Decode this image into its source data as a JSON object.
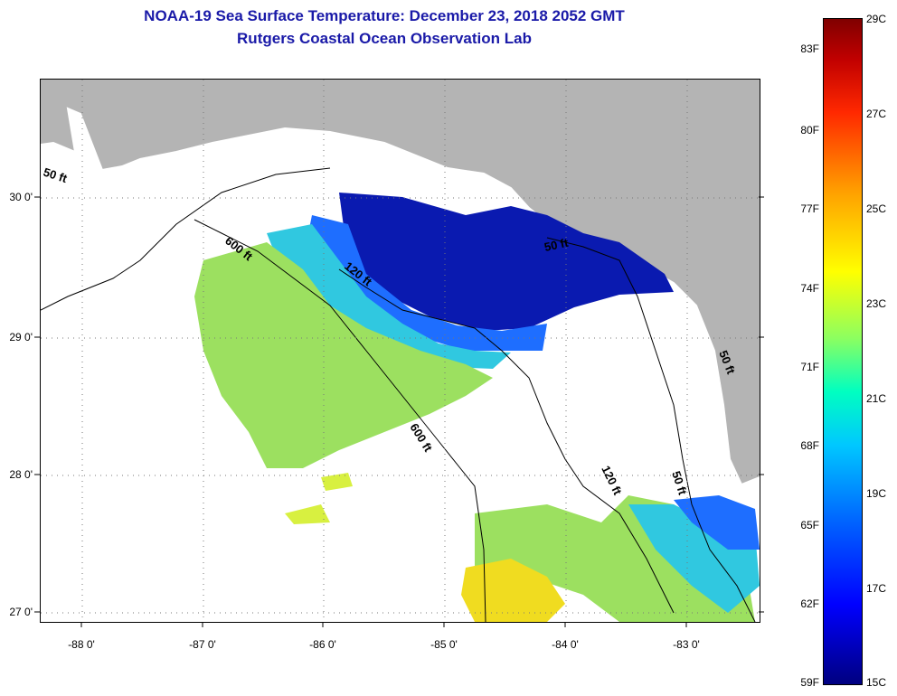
{
  "title": {
    "line1": "NOAA-19 Sea Surface Temperature:  December 23, 2018 2052 GMT",
    "line2": "Rutgers Coastal Ocean Observation Lab"
  },
  "map": {
    "lat_labels": [
      "30 0'",
      "29 0'",
      "28 0'",
      "27 0'"
    ],
    "lon_labels": [
      "-88 0'",
      "-87 0'",
      "-86 0'",
      "-85 0'",
      "-84 0'",
      "-83 0'"
    ],
    "contour_labels": [
      "50 ft",
      "600 ft",
      "120 ft",
      "50 ft",
      "600 ft",
      "120 ft",
      "50 ft",
      "50 ft"
    ],
    "colors": {
      "land": "#b4b4b4",
      "no_data": "#ffffff",
      "cold": "#0a1ab0",
      "cool": "#1e6eff",
      "mid": "#30c8e0",
      "warm": "#9ce060",
      "warmer": "#d8f040",
      "hot": "#f0dc20"
    }
  },
  "colorbar": {
    "fahrenheit": [
      "83F",
      "80F",
      "77F",
      "74F",
      "71F",
      "68F",
      "65F",
      "62F",
      "59F"
    ],
    "celsius": [
      "29C",
      "27C",
      "25C",
      "23C",
      "21C",
      "19C",
      "17C",
      "15C"
    ]
  }
}
